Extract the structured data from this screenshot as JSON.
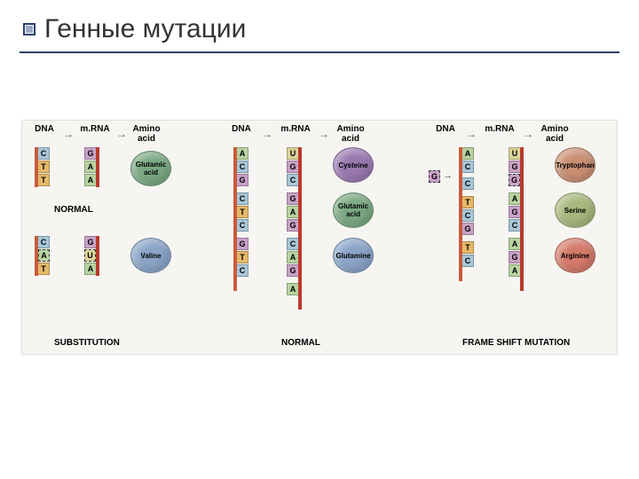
{
  "title": "Генные мутации",
  "headers": {
    "dna": "DNA",
    "mrna": "m.RNA",
    "aa": "Amino acid"
  },
  "labels": {
    "normal": "NORMAL",
    "substitution": "SUBSTITUTION",
    "frameshift": "FRAME SHIFT MUTATION"
  },
  "nt_colors": {
    "A": "#b7d3a0",
    "T": "#e6b96a",
    "C": "#a7c7d9",
    "G": "#c9a2c7",
    "U": "#dcd49a"
  },
  "panel1": {
    "normal": {
      "dna": [
        "C",
        "T",
        "T"
      ],
      "rna": [
        "G",
        "A",
        "A"
      ],
      "aa": {
        "label": "Glutamic acid",
        "color": "#7aa882"
      }
    },
    "sub": {
      "dna": [
        "C",
        "A",
        "T"
      ],
      "rna": [
        "G",
        "U",
        "A"
      ],
      "aa": {
        "label": "Valine",
        "color": "#8aa4c7"
      },
      "highlight_dna_idx": 1,
      "highlight_rna_idx": 1
    }
  },
  "panel2": {
    "dna": [
      "A",
      "C",
      "G",
      "C",
      "T",
      "C",
      "G",
      "T",
      "C"
    ],
    "rna": [
      "U",
      "G",
      "C",
      "G",
      "A",
      "G",
      "C",
      "A",
      "G"
    ],
    "extra_rna": "A",
    "aas": [
      {
        "label": "Cysteine",
        "color": "#9a79b0"
      },
      {
        "label": "Glutamic acid",
        "color": "#7aa882"
      },
      {
        "label": "Glutamine",
        "color": "#8aa4c7"
      }
    ]
  },
  "panel3": {
    "inserted": "G",
    "dna": [
      "A",
      "C",
      "C",
      "T",
      "C",
      "G",
      "T",
      "C"
    ],
    "rna": [
      "U",
      "G",
      "G",
      "A",
      "G",
      "C",
      "A",
      "G",
      "A"
    ],
    "highlight_rna_idx": 2,
    "aas": [
      {
        "label": "Tryptophan",
        "color": "#c98f73"
      },
      {
        "label": "Serine",
        "color": "#a8b77e"
      },
      {
        "label": "Arginine",
        "color": "#d47a6a"
      }
    ]
  }
}
